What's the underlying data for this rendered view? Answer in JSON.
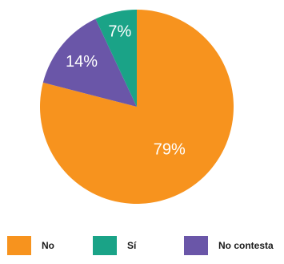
{
  "chart_data": {
    "type": "pie",
    "title": "",
    "slices": [
      {
        "label": "No",
        "value": 79,
        "display": "79%",
        "color": "#f7931e"
      },
      {
        "label": "Sí",
        "value": 7,
        "display": "7%",
        "color": "#1aa387"
      },
      {
        "label": "No contesta",
        "value": 14,
        "display": "14%",
        "color": "#6a56a8"
      }
    ],
    "legend_position": "bottom",
    "start_angle_deg": 0,
    "direction": "clockwise"
  }
}
